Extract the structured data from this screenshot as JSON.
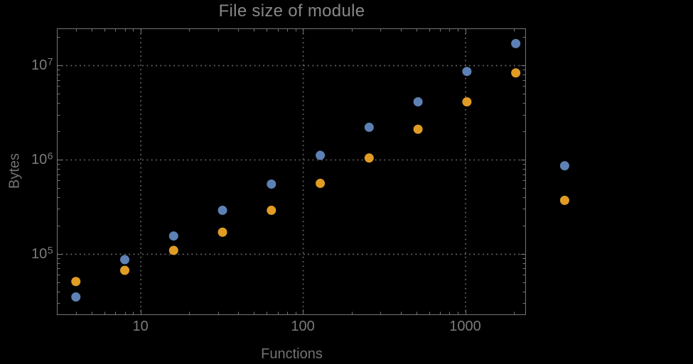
{
  "chart_data": {
    "type": "scatter",
    "title": "File size of module",
    "xlabel": "Functions",
    "ylabel": "Bytes",
    "xscale": "log",
    "yscale": "log",
    "xlim": [
      3.07,
      2355
    ],
    "ylim": [
      22700,
      24400000
    ],
    "grid": "dotted-at-major-ticks",
    "legend": "none",
    "plot_range_clipping": false,
    "x": [
      4,
      8,
      16,
      32,
      64,
      128,
      256,
      512,
      1024,
      2048,
      4096
    ],
    "series": [
      {
        "name": "blue-series",
        "color": "#5e81b5",
        "values": [
          35000,
          87000,
          155000,
          290000,
          550000,
          1110000,
          2200000,
          4100000,
          8600000,
          17000000,
          860000
        ]
      },
      {
        "name": "orange-series",
        "color": "#e19c24",
        "values": [
          51000,
          67000,
          109000,
          170000,
          290000,
          560000,
          1040000,
          2100000,
          4100000,
          8300000,
          370000
        ]
      }
    ],
    "x_ticks": [
      {
        "value": 10,
        "label": "10"
      },
      {
        "value": 100,
        "label": "100"
      },
      {
        "value": 1000,
        "label": "1000"
      }
    ],
    "y_ticks": [
      {
        "value": 100000,
        "base": "10",
        "exp": "5"
      },
      {
        "value": 1000000,
        "base": "10",
        "exp": "6"
      },
      {
        "value": 10000000,
        "base": "10",
        "exp": "7"
      }
    ]
  },
  "colors": {
    "background": "#000000",
    "frame": "#747474",
    "grid": "#6b6b6b",
    "title_text": "#878787",
    "tick_text": "#7b7b7b",
    "axis_label_text": "#737373",
    "series_blue": "#5e81b5",
    "series_orange": "#e19c24"
  }
}
